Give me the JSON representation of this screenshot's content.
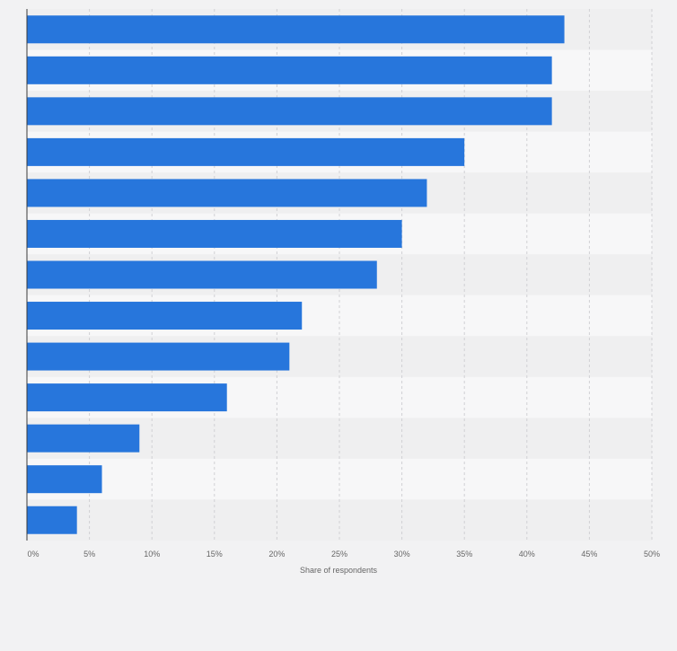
{
  "chart_data": {
    "type": "bar",
    "orientation": "horizontal",
    "categories": [
      "",
      "",
      "",
      "",
      "",
      "",
      "",
      "",
      "",
      "",
      "",
      "",
      ""
    ],
    "values": [
      43,
      42,
      42,
      35,
      32,
      30,
      28,
      22,
      21,
      16,
      9,
      6,
      4
    ],
    "value_unit": "%",
    "xlabel": "Share of respondents",
    "ylabel": "",
    "xlim": [
      0,
      50
    ],
    "x_ticks": [
      0,
      5,
      10,
      15,
      20,
      25,
      30,
      35,
      40,
      45,
      50
    ],
    "x_tick_labels": [
      "0%",
      "5%",
      "10%",
      "15%",
      "20%",
      "25%",
      "30%",
      "35%",
      "40%",
      "45%",
      "50%"
    ],
    "grid": true,
    "legend": "none"
  },
  "colors": {
    "bar": "#2776dc",
    "background": "#f2f2f3",
    "band_light": "#f7f7f8",
    "band_dark": "#efeff0",
    "grid": "#d0d0d4",
    "axis": "#3a3a3a",
    "tick_text": "#666666"
  }
}
